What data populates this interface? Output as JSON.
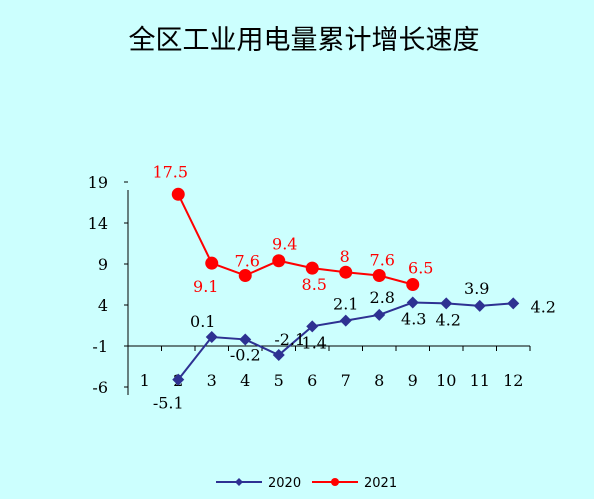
{
  "chart_data": {
    "type": "line",
    "title": "全区工业用电量累计增长速度",
    "x": [
      1,
      2,
      3,
      4,
      5,
      6,
      7,
      8,
      9,
      10,
      11,
      12
    ],
    "x_tick_labels": [
      "1",
      "2",
      "3",
      "4",
      "5",
      "6",
      "7",
      "8",
      "9",
      "10",
      "11",
      "12"
    ],
    "y_ticks": [
      19,
      14,
      9,
      4,
      -1,
      -6
    ],
    "y_tick_labels": [
      "19",
      "14",
      "9",
      "4",
      "-1",
      "-6"
    ],
    "ylim": [
      -6,
      19
    ],
    "grid": false,
    "legend_position": "bottom",
    "series": [
      {
        "name": "2020",
        "color": "#2e3192",
        "marker": "diamond",
        "x": [
          2,
          3,
          4,
          5,
          6,
          7,
          8,
          9,
          10,
          11,
          12
        ],
        "values": [
          -5.1,
          0.1,
          -0.2,
          -2.1,
          1.4,
          2.1,
          2.8,
          4.3,
          4.2,
          3.9,
          4.2
        ],
        "labels": [
          "-5.1",
          "0.1",
          "-0.2",
          "-2.1",
          "1.4",
          "2.1",
          "2.8",
          "4.3",
          "4.2",
          "3.9",
          "4.2"
        ]
      },
      {
        "name": "2021",
        "color": "#ff0000",
        "marker": "circle",
        "x": [
          2,
          3,
          4,
          5,
          6,
          7,
          8,
          9
        ],
        "values": [
          17.5,
          9.1,
          7.6,
          9.4,
          8.5,
          8,
          7.6,
          6.5
        ],
        "labels": [
          "17.5",
          "9.1",
          "7.6",
          "9.4",
          "8.5",
          "8",
          "7.6",
          "6.5"
        ]
      }
    ]
  }
}
